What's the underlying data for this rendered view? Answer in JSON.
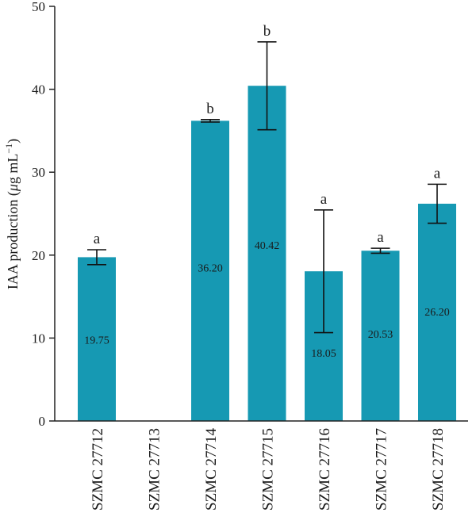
{
  "chart_data": {
    "type": "bar",
    "title": "",
    "xlabel": "",
    "ylabel": "IAA production (",
    "ylabel_mu": "μ",
    "ylabel_unit": "g mL",
    "ylabel_exp": "−1",
    "ylabel_close": ")",
    "ylim": [
      0,
      50
    ],
    "yticks": [
      "0",
      "10",
      "20",
      "30",
      "40",
      "50"
    ],
    "ytick_values": [
      0,
      10,
      20,
      30,
      40,
      50
    ],
    "categories": [
      "SZMC 27712",
      "SZMC 27713",
      "SZMC 27714",
      "SZMC 27715",
      "SZMC 27716",
      "SZMC 27717",
      "SZMC 27718"
    ],
    "values": [
      19.75,
      0,
      36.2,
      40.42,
      18.05,
      20.53,
      26.2
    ],
    "errors": [
      0.9,
      0,
      0.15,
      5.3,
      7.4,
      0.3,
      2.35
    ],
    "data_labels": [
      "19.75",
      "",
      "36.20",
      "40.42",
      "18.05",
      "20.53",
      "26.20"
    ],
    "data_label_y": [
      9.8,
      null,
      18.5,
      21.2,
      8.2,
      10.5,
      13.2
    ],
    "significance": [
      "a",
      "",
      "b",
      "b",
      "a",
      "a",
      "a"
    ],
    "bar_color": "#1699b3",
    "grid": false
  }
}
